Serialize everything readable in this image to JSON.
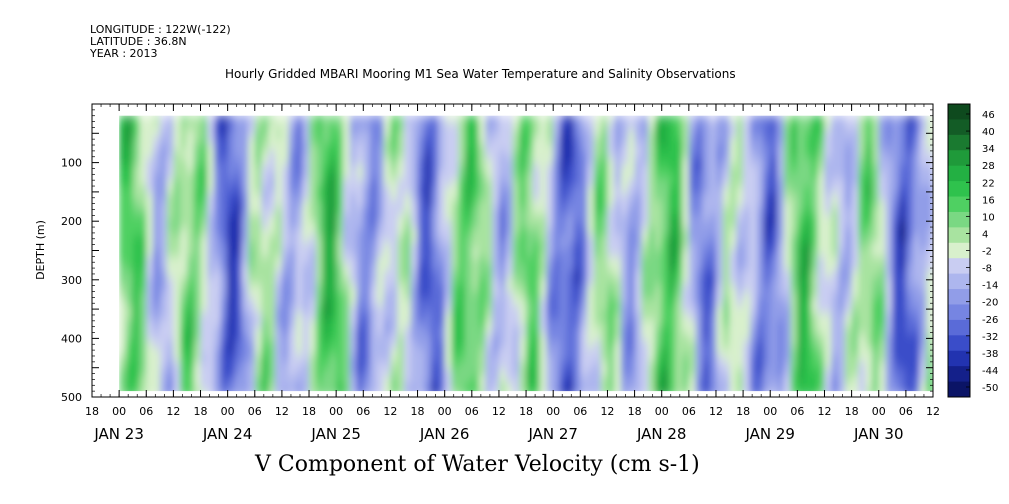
{
  "header": {
    "longitude": "LONGITUDE : 122W(-122)",
    "latitude": "LATITUDE : 36.8N",
    "year": "YEAR : 2013"
  },
  "chart_data": {
    "type": "heatmap",
    "title": "Hourly Gridded MBARI Mooring M1 Sea Water Temperature and Salinity Observations",
    "subtitle": "V Component of Water Velocity (cm s-1)",
    "ylabel": "DEPTH (m)",
    "ylim": [
      500,
      0
    ],
    "y_ticks": [
      "100",
      "200",
      "300",
      "400",
      "500"
    ],
    "hour_ticks": [
      "18",
      "00",
      "06",
      "12",
      "18",
      "00",
      "06",
      "12",
      "18",
      "00",
      "06",
      "12",
      "18",
      "00",
      "06",
      "12",
      "18",
      "00",
      "06",
      "12",
      "18",
      "00",
      "06",
      "12",
      "18",
      "00",
      "06",
      "12",
      "18",
      "00",
      "06",
      "12"
    ],
    "date_labels": [
      "JAN 23",
      "JAN 24",
      "JAN 25",
      "JAN 26",
      "JAN 27",
      "JAN 28",
      "JAN 29",
      "JAN 30"
    ],
    "colorbar_ticks": [
      "46",
      "40",
      "34",
      "28",
      "22",
      "16",
      "10",
      "4",
      "-2",
      "-8",
      "-14",
      "-20",
      "-26",
      "-32",
      "-38",
      "-44",
      "-50"
    ],
    "colorbar_colors": [
      "#0e4a1e",
      "#135c26",
      "#1a7a30",
      "#1f9a3a",
      "#23b043",
      "#2fc24d",
      "#4fd062",
      "#7ad883",
      "#a8e3a0",
      "#d8f0cc",
      "#c9cdf2",
      "#adb6ee",
      "#919de8",
      "#7685e2",
      "#5a6bd8",
      "#3a4dc9",
      "#2233b0",
      "#14208a",
      "#0b1466"
    ],
    "x_range_hours": [
      -6,
      180
    ],
    "data_start_hour": 0,
    "depth_top": 20,
    "depth_bottom": 490,
    "dominant_pattern": "alternating vertical bands of northward (green, positive) and southward (blue, negative) flow"
  }
}
